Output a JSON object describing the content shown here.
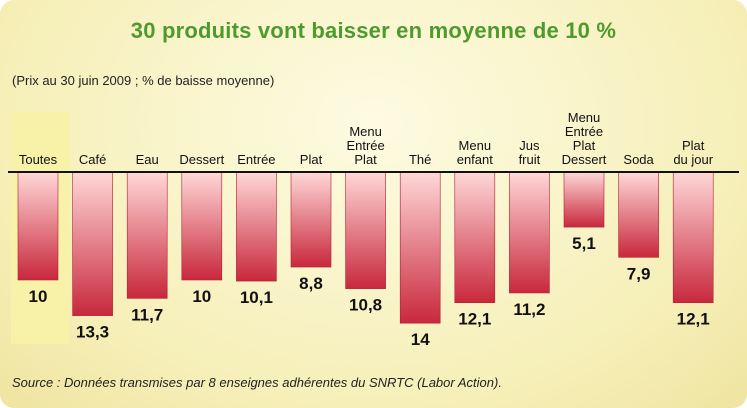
{
  "title": "30 produits vont baisser en moyenne de 10 %",
  "subtitle": "(Prix au 30 juin 2009 ; % de baisse moyenne)",
  "source": "Source : Données transmises par 8 enseignes adhérentes du SNRTC (Labor Action).",
  "colors": {
    "bar_top": "#ffd6d6",
    "bar_bottom": "#c8283c",
    "highlight": "#f7f2a8",
    "title": "#4e9a2c"
  },
  "chart_data": {
    "type": "bar",
    "orientation": "downward",
    "categories": [
      [
        "Toutes"
      ],
      [
        "Café"
      ],
      [
        "Eau"
      ],
      [
        "Dessert"
      ],
      [
        "Entrée"
      ],
      [
        "Plat"
      ],
      [
        "Menu",
        "Entrée",
        "Plat"
      ],
      [
        "Thé"
      ],
      [
        "Menu",
        "enfant"
      ],
      [
        "Jus",
        "fruit"
      ],
      [
        "Menu",
        "Entrée",
        "Plat",
        "Dessert"
      ],
      [
        "Soda"
      ],
      [
        "Plat",
        "du jour"
      ]
    ],
    "values": [
      10,
      13.3,
      11.7,
      10,
      10.1,
      8.8,
      10.8,
      14,
      12.1,
      11.2,
      5.1,
      7.9,
      12.1
    ],
    "value_labels": [
      "10",
      "13,3",
      "11,7",
      "10",
      "10,1",
      "8,8",
      "10,8",
      "14",
      "12,1",
      "11,2",
      "5,1",
      "7,9",
      "12,1"
    ],
    "highlighted_category": "Toutes",
    "ylim": [
      0,
      15
    ],
    "grid": false,
    "legend": "none"
  }
}
